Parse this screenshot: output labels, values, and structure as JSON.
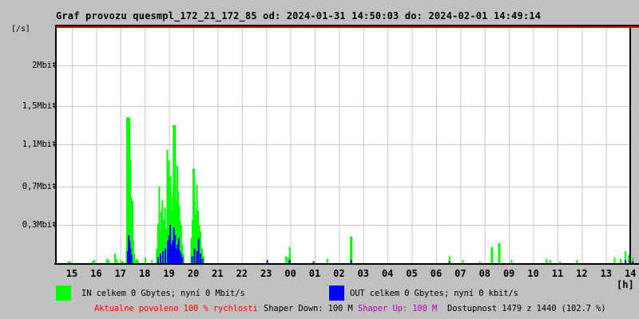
{
  "window": {
    "title": "Graf provozu quesmpl_172_21_172_85 od: 2024-01-31 14:50:03 do: 2024-02-01 14:49:14"
  },
  "colors": {
    "background": "#c0c0c0",
    "plot_background": "#ffffff",
    "grid": "#c9c9c9",
    "axis": "#000000",
    "limit_line": "#ff0000",
    "in_series": "#00ff00",
    "out_series": "#0000ff",
    "alert_text": "#ff0000",
    "shaper_up_text": "#bb00bb",
    "text": "#000000"
  },
  "legend": {
    "in_label": "IN celkem 0 Gbytes; nyní 0 Mbit/s",
    "out_label": "OUT celkem 0 Gbytes; nyní 0 kbit/s"
  },
  "footer": {
    "allowed": "Aktualne povoleno 100 % rychlosti",
    "shaper_down": "Shaper Down: 100 M",
    "shaper_up": "Shaper Up: 100 M",
    "availability": "Dostupnost 1479 z 1440 (102.7 %)"
  },
  "chart_data": {
    "type": "bar",
    "title": "Graf provozu quesmpl_172_21_172_85 od: 2024-01-31 14:50:03 do: 2024-02-01 14:49:14",
    "ylabel": "[/s]",
    "xlabel": "[h]",
    "grid": true,
    "x_ticks": [
      "15",
      "16",
      "17",
      "18",
      "19",
      "20",
      "21",
      "22",
      "23",
      "00",
      "01",
      "02",
      "03",
      "04",
      "05",
      "06",
      "07",
      "08",
      "09",
      "10",
      "11",
      "12",
      "13",
      "14"
    ],
    "y_ticks": {
      "labels": [
        "2Mbit",
        "1,5Mbit",
        "1,1Mbit",
        "0,7Mbit",
        "0,3Mbit"
      ],
      "values_mbit": [
        2.0,
        1.5,
        1.1,
        0.7,
        0.3
      ]
    },
    "ylim_mbit": [
      0,
      2.4
    ],
    "limit_line_mbit": 2.4,
    "series": [
      {
        "name": "IN",
        "unit": "Mbit/s",
        "color": "#00ff00",
        "points": [
          [
            14.87,
            0.02
          ],
          [
            14.93,
            0.02
          ],
          [
            15.85,
            0.02
          ],
          [
            15.92,
            0.03
          ],
          [
            16.45,
            0.04
          ],
          [
            16.52,
            0.03
          ],
          [
            16.78,
            0.08
          ],
          [
            16.85,
            0.04
          ],
          [
            17.02,
            0.03
          ],
          [
            17.1,
            0.02
          ],
          [
            17.25,
            0.1
          ],
          [
            17.29,
            0.55
          ],
          [
            17.32,
            1.38,
            5
          ],
          [
            17.35,
            1.3
          ],
          [
            17.38,
            1.22
          ],
          [
            17.41,
            0.95
          ],
          [
            17.44,
            0.6
          ],
          [
            17.47,
            0.3
          ],
          [
            17.5,
            0.55
          ],
          [
            17.53,
            0.18
          ],
          [
            17.57,
            0.08
          ],
          [
            17.65,
            0.04
          ],
          [
            17.72,
            0.03
          ],
          [
            18.02,
            0.05
          ],
          [
            18.3,
            0.03
          ],
          [
            18.5,
            0.12
          ],
          [
            18.55,
            0.31
          ],
          [
            18.6,
            0.7
          ],
          [
            18.63,
            0.25
          ],
          [
            18.68,
            0.44
          ],
          [
            18.73,
            0.56
          ],
          [
            18.78,
            0.35
          ],
          [
            18.83,
            0.48
          ],
          [
            18.88,
            0.28
          ],
          [
            18.93,
            1.05
          ],
          [
            18.97,
            0.85
          ],
          [
            19.0,
            0.95
          ],
          [
            19.03,
            0.7
          ],
          [
            19.07,
            0.8
          ],
          [
            19.1,
            0.6
          ],
          [
            19.14,
            0.45
          ],
          [
            19.18,
            0.7
          ],
          [
            19.22,
            1.3,
            4
          ],
          [
            19.26,
            0.75
          ],
          [
            19.3,
            0.55
          ],
          [
            19.34,
            0.9
          ],
          [
            19.38,
            0.65
          ],
          [
            19.42,
            0.5
          ],
          [
            19.46,
            0.35
          ],
          [
            19.5,
            0.3
          ],
          [
            19.55,
            0.15
          ],
          [
            19.6,
            0.08
          ],
          [
            19.92,
            0.2
          ],
          [
            19.97,
            0.35
          ],
          [
            20.02,
            0.87,
            3
          ],
          [
            20.06,
            0.55
          ],
          [
            20.1,
            0.4
          ],
          [
            20.15,
            0.72
          ],
          [
            20.2,
            0.45
          ],
          [
            20.25,
            0.3
          ],
          [
            20.3,
            0.25
          ],
          [
            20.36,
            0.12
          ],
          [
            20.42,
            0.06
          ],
          [
            23.82,
            0.06
          ],
          [
            23.9,
            0.05
          ],
          [
            23.97,
            0.13
          ],
          [
            1.52,
            0.04
          ],
          [
            2.5,
            0.21,
            3
          ],
          [
            6.55,
            0.06
          ],
          [
            7.1,
            0.03
          ],
          [
            7.8,
            0.02
          ],
          [
            8.3,
            0.13,
            3
          ],
          [
            8.6,
            0.16,
            3
          ],
          [
            9.1,
            0.03
          ],
          [
            10.55,
            0.04
          ],
          [
            10.7,
            0.03
          ],
          [
            11.1,
            0.02
          ],
          [
            11.8,
            0.03
          ],
          [
            13.35,
            0.05
          ],
          [
            13.6,
            0.04
          ],
          [
            13.8,
            0.1
          ],
          [
            13.93,
            0.07
          ],
          [
            14.1,
            0.05
          ]
        ]
      },
      {
        "name": "OUT",
        "unit": "kbit/s",
        "color": "#0000ff",
        "points": [
          [
            17.3,
            0.1
          ],
          [
            17.34,
            0.22
          ],
          [
            17.38,
            0.18
          ],
          [
            17.42,
            0.12
          ],
          [
            17.46,
            0.07
          ],
          [
            18.55,
            0.05
          ],
          [
            18.65,
            0.08
          ],
          [
            18.75,
            0.1
          ],
          [
            18.85,
            0.12
          ],
          [
            18.95,
            0.18
          ],
          [
            19.0,
            0.22
          ],
          [
            19.05,
            0.3
          ],
          [
            19.1,
            0.15
          ],
          [
            19.15,
            0.18
          ],
          [
            19.2,
            0.28
          ],
          [
            19.25,
            0.22
          ],
          [
            19.3,
            0.12
          ],
          [
            19.35,
            0.15
          ],
          [
            19.4,
            0.2
          ],
          [
            19.45,
            0.1
          ],
          [
            19.5,
            0.08
          ],
          [
            19.55,
            0.05
          ],
          [
            19.95,
            0.06
          ],
          [
            20.05,
            0.12
          ],
          [
            20.15,
            0.1
          ],
          [
            20.22,
            0.2
          ],
          [
            20.3,
            0.08
          ],
          [
            20.38,
            0.04
          ],
          [
            23.05,
            0.03
          ],
          [
            23.97,
            0.03
          ],
          [
            0.95,
            0.02
          ],
          [
            2.5,
            0.03
          ],
          [
            6.55,
            0.02
          ],
          [
            13.8,
            0.03
          ],
          [
            14.1,
            0.02
          ]
        ]
      }
    ]
  }
}
